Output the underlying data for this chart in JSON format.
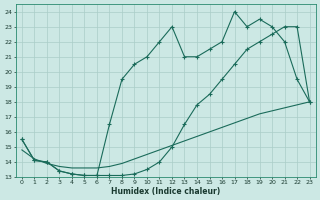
{
  "xlabel": "Humidex (Indice chaleur)",
  "bg_color": "#cce8e4",
  "grid_color": "#aacec8",
  "line_color": "#1a6b5a",
  "xlim": [
    -0.5,
    23.5
  ],
  "ylim": [
    13,
    24.5
  ],
  "yticks": [
    13,
    14,
    15,
    16,
    17,
    18,
    19,
    20,
    21,
    22,
    23,
    24
  ],
  "xticks": [
    0,
    1,
    2,
    3,
    4,
    5,
    6,
    7,
    8,
    9,
    10,
    11,
    12,
    13,
    14,
    15,
    16,
    17,
    18,
    19,
    20,
    21,
    22,
    23
  ],
  "line1_x": [
    0,
    1,
    2,
    3,
    4,
    5,
    6,
    7,
    8,
    9,
    10,
    11,
    12,
    13,
    14,
    15,
    16,
    17,
    18,
    19,
    20,
    21,
    22,
    23
  ],
  "line1_y": [
    15.5,
    14.1,
    14.0,
    13.4,
    13.2,
    13.1,
    13.1,
    13.1,
    13.1,
    13.2,
    13.5,
    14.0,
    15.0,
    16.5,
    17.8,
    18.5,
    19.5,
    20.5,
    21.5,
    22.0,
    22.5,
    23.0,
    23.0,
    18.0
  ],
  "line2_x": [
    0,
    1,
    2,
    3,
    4,
    5,
    6,
    7,
    8,
    9,
    10,
    11,
    12,
    13,
    14,
    15,
    16,
    17,
    18,
    19,
    20,
    21,
    22,
    23
  ],
  "line2_y": [
    15.5,
    14.1,
    14.0,
    13.4,
    13.2,
    13.1,
    13.1,
    16.5,
    19.5,
    20.5,
    21.0,
    22.0,
    23.0,
    21.0,
    21.0,
    21.5,
    22.0,
    24.0,
    23.0,
    23.5,
    23.0,
    22.0,
    19.5,
    18.0
  ],
  "line3_x": [
    0,
    1,
    2,
    3,
    4,
    5,
    6,
    7,
    8,
    9,
    10,
    11,
    12,
    13,
    14,
    15,
    16,
    17,
    18,
    19,
    20,
    21,
    22,
    23
  ],
  "line3_y": [
    14.8,
    14.2,
    13.9,
    13.7,
    13.6,
    13.6,
    13.6,
    13.7,
    13.9,
    14.2,
    14.5,
    14.8,
    15.1,
    15.4,
    15.7,
    16.0,
    16.3,
    16.6,
    16.9,
    17.2,
    17.4,
    17.6,
    17.8,
    18.0
  ]
}
